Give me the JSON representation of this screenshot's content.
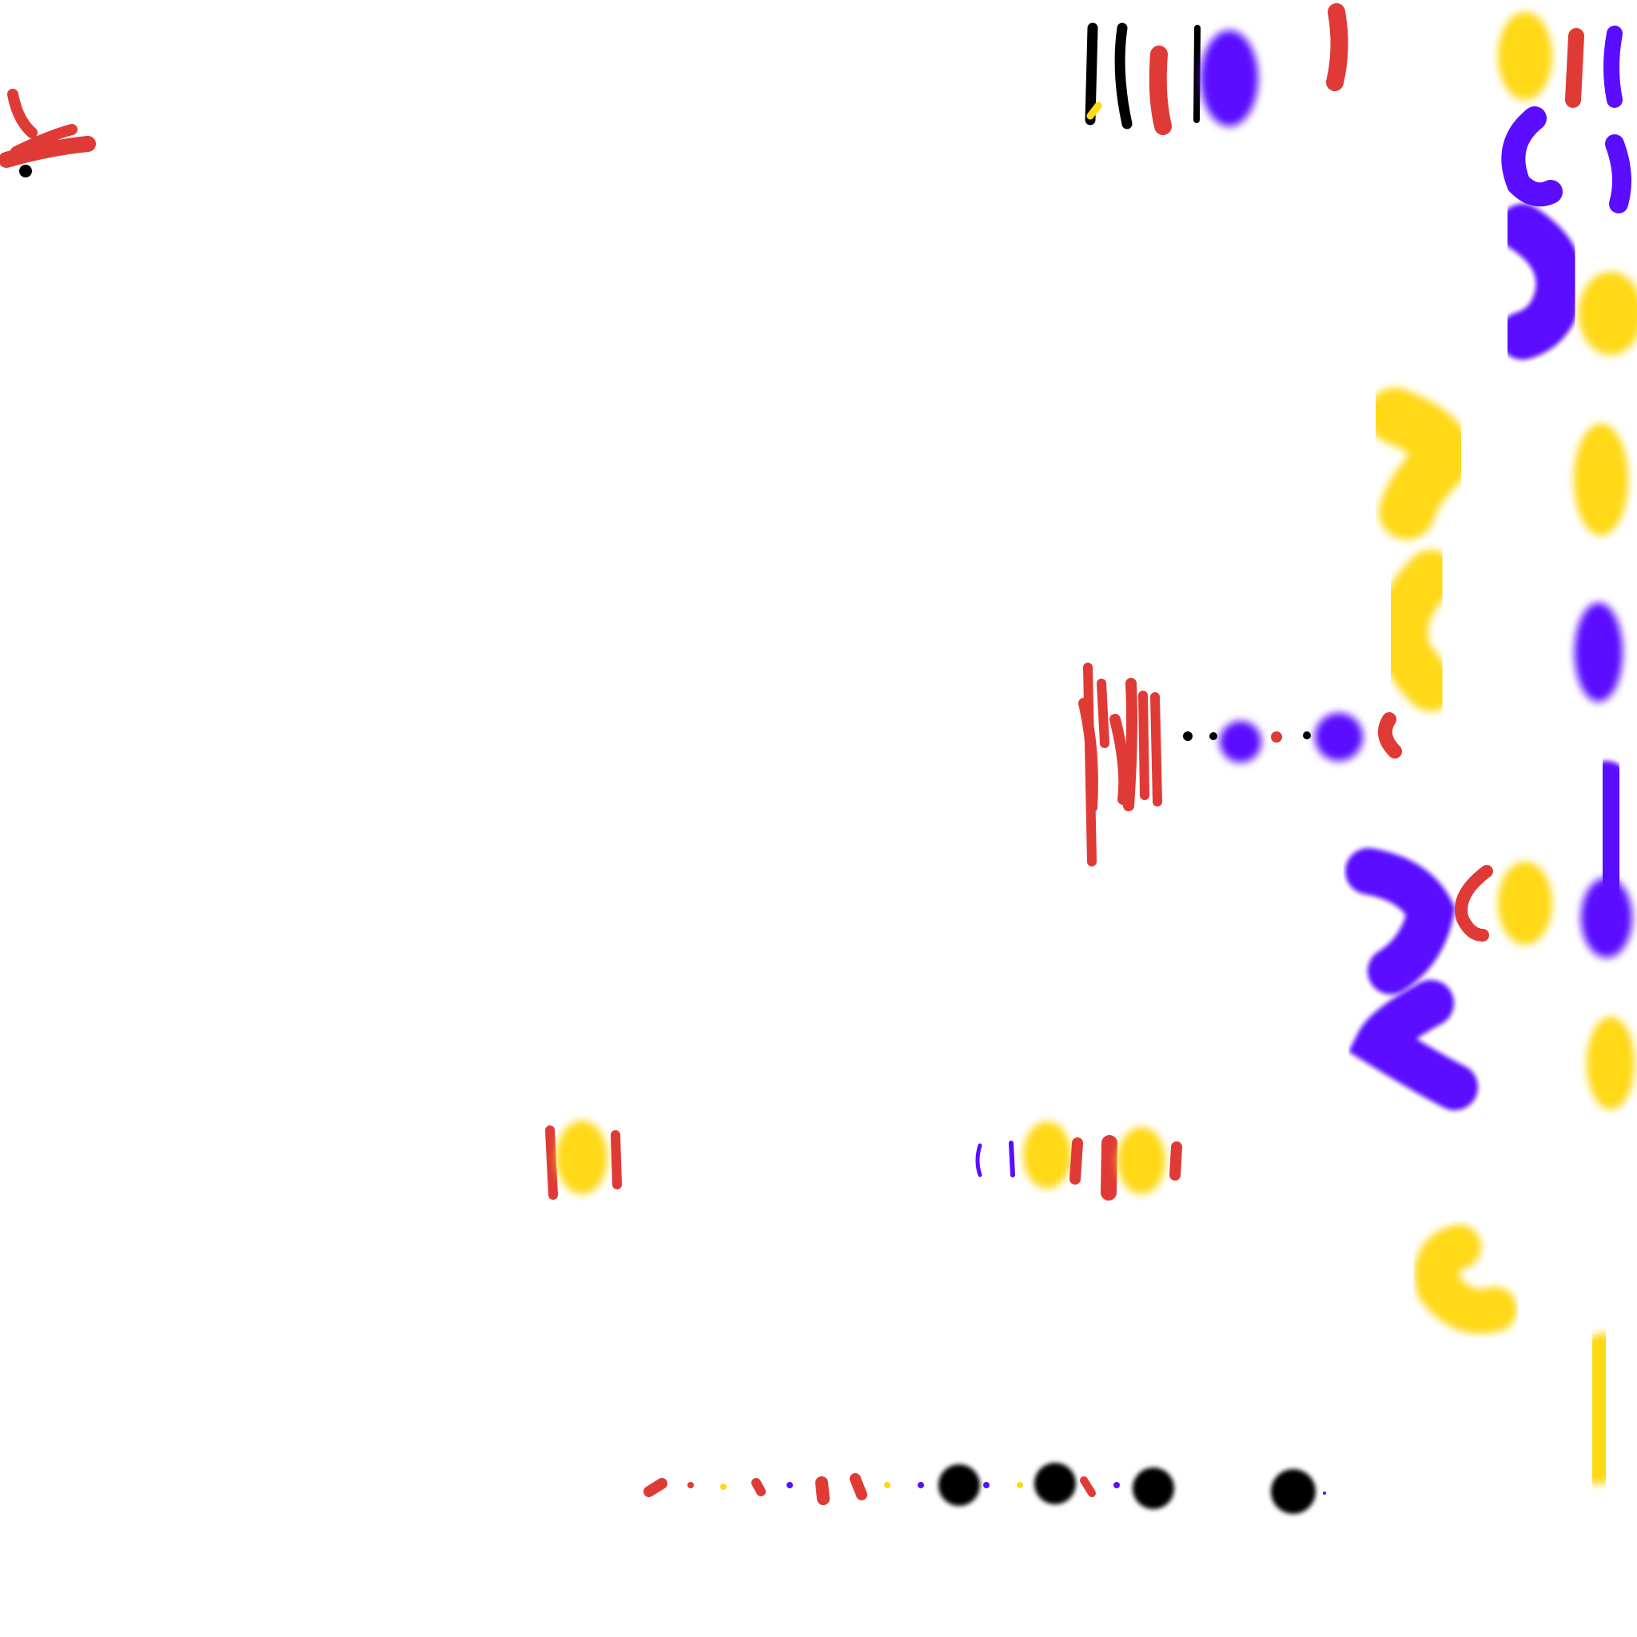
{
  "canvas": {
    "background": "#ffffff",
    "palette": {
      "red": "#e03a36",
      "yellow": "#ffd814",
      "violet": "#5a0dff",
      "black": "#000000"
    }
  }
}
